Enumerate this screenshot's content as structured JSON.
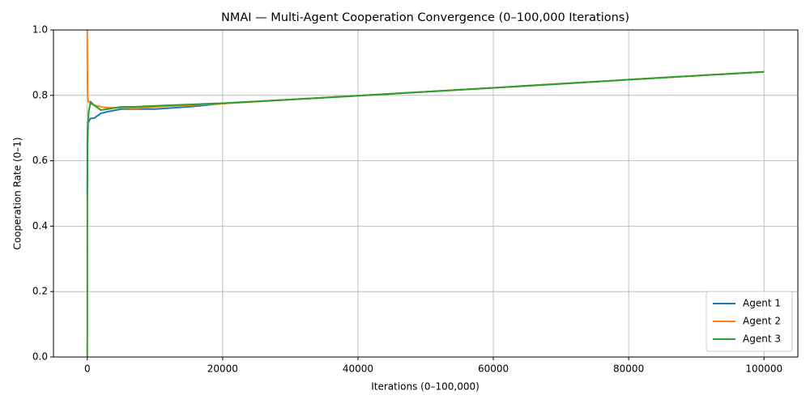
{
  "chart_data": {
    "type": "line",
    "title": "NMAI — Multi-Agent Cooperation Convergence (0–100,000 Iterations)",
    "x_label": "Iterations (0–100,000)",
    "y_label": "Cooperation Rate (0–1)",
    "x": [
      0,
      10,
      50,
      100,
      200,
      500,
      1000,
      2000,
      3000,
      5000,
      7000,
      10000,
      15000,
      20000,
      30000,
      40000,
      60000,
      80000,
      100000
    ],
    "series": [
      {
        "name": "Agent 1",
        "color": "#1f77b4",
        "values": [
          0.5,
          0.65,
          0.7,
          0.72,
          0.72,
          0.73,
          0.73,
          0.745,
          0.75,
          0.758,
          0.758,
          0.758,
          0.765,
          0.775,
          0.787,
          0.799,
          0.823,
          0.848,
          0.872
        ]
      },
      {
        "name": "Agent 2",
        "color": "#ff7f0e",
        "values": [
          1.0,
          0.9,
          0.8,
          0.79,
          0.78,
          0.775,
          0.77,
          0.765,
          0.762,
          0.762,
          0.76,
          0.765,
          0.77,
          0.775,
          0.787,
          0.799,
          0.823,
          0.848,
          0.872
        ]
      },
      {
        "name": "Agent 3",
        "color": "#2ca02c",
        "values": [
          0.0,
          0.5,
          0.65,
          0.7,
          0.75,
          0.78,
          0.77,
          0.755,
          0.758,
          0.765,
          0.765,
          0.768,
          0.772,
          0.776,
          0.787,
          0.799,
          0.823,
          0.848,
          0.872
        ]
      }
    ],
    "xlim": [
      -5000,
      105000
    ],
    "xticks": [
      0,
      20000,
      40000,
      60000,
      80000,
      100000
    ],
    "ylim": [
      0,
      1
    ],
    "yticks": [
      {
        "value": 0,
        "label": "0.0"
      },
      0.2,
      0.4,
      0.6,
      0.8,
      {
        "value": 1,
        "label": "1.0"
      }
    ],
    "grid": true,
    "legend": "lower-right"
  }
}
